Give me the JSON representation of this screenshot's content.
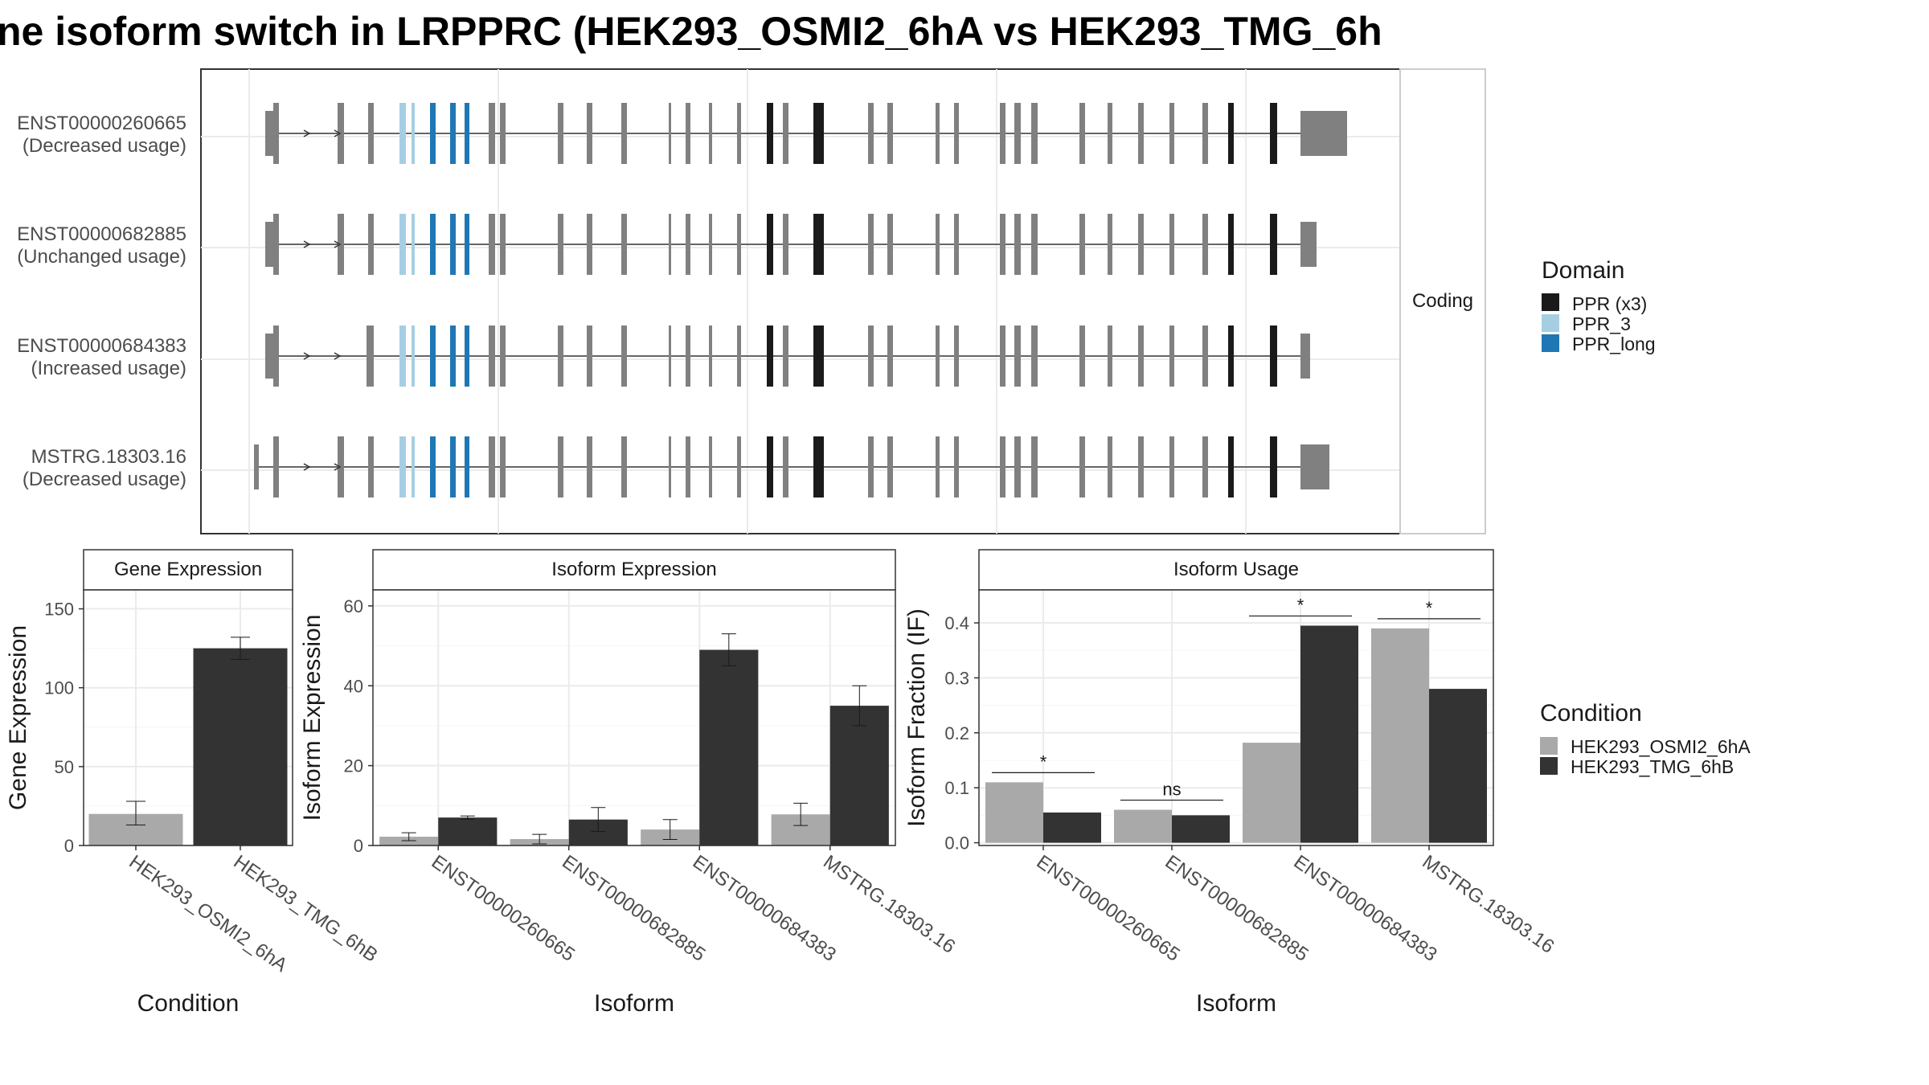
{
  "title": "ne isoform switch in LRPPRC (HEK293_OSMI2_6hA vs HEK293_TMG_6h",
  "structure_panel": {
    "strip_label": "Coding",
    "isoforms": [
      {
        "id": "ENST00000260665",
        "usage": "(Decreased usage)"
      },
      {
        "id": "ENST00000682885",
        "usage": "(Unchanged usage)"
      },
      {
        "id": "ENST00000684383",
        "usage": "(Increased usage)"
      },
      {
        "id": "MSTRG.18303.16",
        "usage": "(Decreased usage)"
      }
    ]
  },
  "domain_legend": {
    "title": "Domain",
    "items": [
      {
        "label": "PPR (x3)",
        "color": "#1a1a1a"
      },
      {
        "label": "PPR_3",
        "color": "#a6cee3"
      },
      {
        "label": "PPR_long",
        "color": "#1f78b4"
      }
    ]
  },
  "condition_legend": {
    "title": "Condition",
    "items": [
      {
        "label": "HEK293_OSMI2_6hA",
        "color": "#a9a9a9"
      },
      {
        "label": "HEK293_TMG_6hB",
        "color": "#333333"
      }
    ]
  },
  "chart_data": [
    {
      "type": "bar",
      "strip": "Gene Expression",
      "xlabel": "Condition",
      "ylabel": "Gene Expression",
      "categories": [
        "HEK293_OSMI2_6hA",
        "HEK293_TMG_6hB"
      ],
      "values": [
        20,
        125
      ],
      "error": [
        [
          13,
          28
        ],
        [
          118,
          132
        ]
      ],
      "colors": [
        "#a9a9a9",
        "#333333"
      ],
      "ylim": [
        0,
        162
      ],
      "yticks": [
        0,
        50,
        100,
        150
      ]
    },
    {
      "type": "bar",
      "strip": "Isoform Expression",
      "xlabel": "Isoform",
      "ylabel": "Isoform Expression",
      "categories": [
        "ENST00000260665",
        "ENST00000682885",
        "ENST00000684383",
        "MSTRG.18303.16"
      ],
      "series": [
        {
          "name": "HEK293_OSMI2_6hA",
          "values": [
            2.2,
            1.6,
            4.0,
            7.8
          ],
          "error": [
            [
              1.2,
              3.2
            ],
            [
              0.4,
              2.8
            ],
            [
              1.5,
              6.5
            ],
            [
              5.0,
              10.6
            ]
          ]
        },
        {
          "name": "HEK293_TMG_6hB",
          "values": [
            7.0,
            6.5,
            49,
            35
          ],
          "error": [
            [
              6.6,
              7.4
            ],
            [
              3.5,
              9.5
            ],
            [
              45,
              53
            ],
            [
              30,
              40
            ]
          ]
        }
      ],
      "ylim": [
        0,
        64
      ],
      "yticks": [
        0,
        20,
        40,
        60
      ]
    },
    {
      "type": "bar",
      "strip": "Isoform Usage",
      "xlabel": "Isoform",
      "ylabel": "Isoform Fraction (IF)",
      "categories": [
        "ENST00000260665",
        "ENST00000682885",
        "ENST00000684383",
        "MSTRG.18303.16"
      ],
      "series": [
        {
          "name": "HEK293_OSMI2_6hA",
          "values": [
            0.11,
            0.06,
            0.182,
            0.39
          ]
        },
        {
          "name": "HEK293_TMG_6hB",
          "values": [
            0.055,
            0.05,
            0.395,
            0.28
          ]
        }
      ],
      "significance": [
        "*",
        "ns",
        "*",
        "*"
      ],
      "ylim": [
        -0.005,
        0.46
      ],
      "yticks": [
        0.0,
        0.1,
        0.2,
        0.3,
        0.4
      ],
      "ytick_labels": [
        "0.0",
        "0.1",
        "0.2",
        "0.3",
        "0.4"
      ]
    }
  ]
}
